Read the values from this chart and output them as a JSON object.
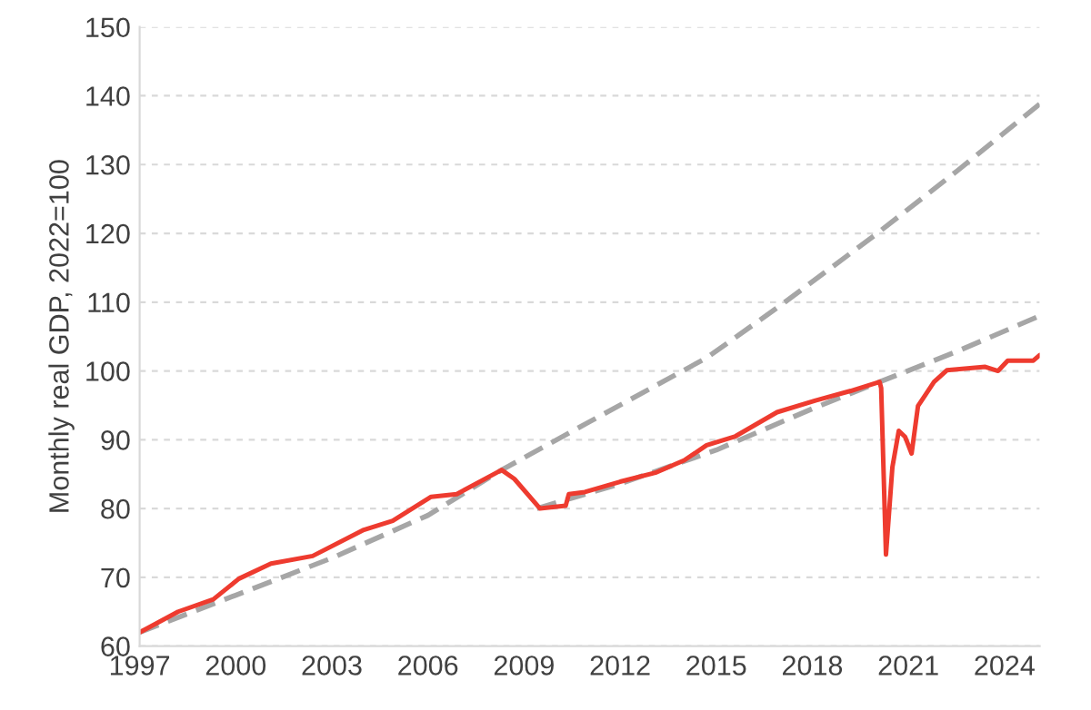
{
  "chart_data": {
    "type": "line",
    "ylabel": "Monthly real GDP, 2022=100",
    "xlim": [
      1997,
      2025.1
    ],
    "xticks": [
      1997,
      2000,
      2003,
      2006,
      2009,
      2012,
      2015,
      2018,
      2021,
      2024
    ],
    "ylim": [
      60,
      150
    ],
    "yticks": [
      60,
      70,
      80,
      90,
      100,
      110,
      120,
      130,
      140,
      150
    ],
    "grid": "y",
    "legend": false,
    "series": [
      {
        "color": "#a6a6a6",
        "line_style": "dashed",
        "x": [
          1997,
          2000,
          2003,
          2006,
          2008.3,
          2011,
          2014.7,
          2017,
          2020,
          2022.5,
          2025.1
        ],
        "values": [
          62,
          67.4,
          72.8,
          79,
          85.6,
          92.5,
          101.9,
          109.5,
          119.9,
          129,
          138.8
        ]
      },
      {
        "color": "#a6a6a6",
        "line_style": "dashed",
        "x": [
          2009.4,
          2012,
          2015,
          2018,
          2020.1,
          2022.5,
          2025.1
        ],
        "values": [
          80,
          83.6,
          88.5,
          94.5,
          98.4,
          102.8,
          108
        ]
      },
      {
        "color": "#ee3b2f",
        "line_style": "solid",
        "x": [
          1997,
          1998.2,
          1999.3,
          2000.1,
          2001.1,
          2002.4,
          2004,
          2004.9,
          2006.1,
          2006.9,
          2008.3,
          2008.7,
          2009.5,
          2010.3,
          2010.4,
          2010.9,
          2012,
          2013.1,
          2014,
          2014.7,
          2015.6,
          2016.9,
          2018.1,
          2019.2,
          2020.1,
          2020.15,
          2020.3,
          2020.5,
          2020.7,
          2020.9,
          2021.1,
          2021.3,
          2021.8,
          2022.2,
          2023.4,
          2023.8,
          2024.1,
          2024.9,
          2025.1
        ],
        "values": [
          62,
          65,
          66.8,
          69.8,
          72,
          73.1,
          76.9,
          78.2,
          81.7,
          82.1,
          85.6,
          84.3,
          80,
          80.4,
          82.1,
          82.4,
          83.9,
          85.2,
          87,
          89.2,
          90.5,
          94,
          95.7,
          97.1,
          98.4,
          97.5,
          73.3,
          86,
          91.3,
          90.4,
          88,
          94.9,
          98.4,
          100.1,
          100.6,
          100,
          101.5,
          101.5,
          102.3
        ]
      }
    ]
  }
}
